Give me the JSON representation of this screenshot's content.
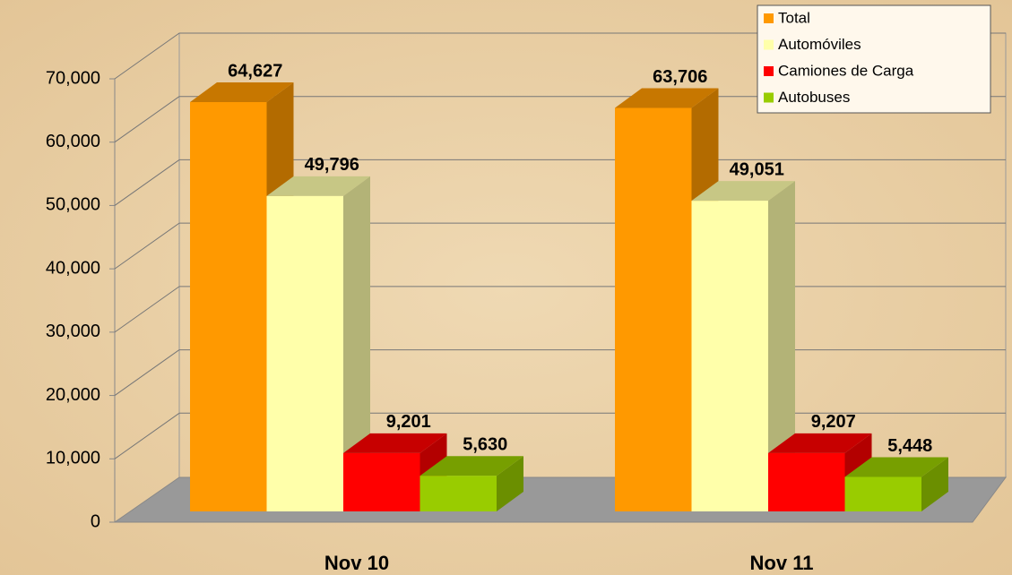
{
  "chart_data": {
    "type": "bar3d",
    "categories": [
      "Nov 10",
      "Nov 11"
    ],
    "series": [
      {
        "name": "Total",
        "color": "#FF9900",
        "values": [
          64627,
          63706
        ],
        "value_labels": [
          "64,627",
          "63,706"
        ]
      },
      {
        "name": "Automóviles",
        "color": "#FFFFAA",
        "values": [
          49796,
          49051
        ],
        "value_labels": [
          "49,796",
          "49,051"
        ]
      },
      {
        "name": "Camiones de Carga",
        "color": "#FF0000",
        "values": [
          9201,
          9207
        ],
        "value_labels": [
          "9,201",
          "9,207"
        ]
      },
      {
        "name": "Autobuses",
        "color": "#99CC00",
        "values": [
          5630,
          5448
        ],
        "value_labels": [
          "5,630",
          "5,448"
        ]
      }
    ],
    "ylim": [
      0,
      70000
    ],
    "yticks": [
      0,
      {
        "value": 10000,
        "label": "10,000"
      },
      {
        "value": 20000,
        "label": "20,000"
      },
      {
        "value": 30000,
        "label": "30,000"
      },
      {
        "value": 40000,
        "label": "40,000"
      },
      {
        "value": 50000,
        "label": "50,000"
      },
      {
        "value": 60000,
        "label": "60,000"
      },
      {
        "value": 70000,
        "label": "70,000"
      }
    ],
    "grid": true,
    "legend": "top-right"
  }
}
